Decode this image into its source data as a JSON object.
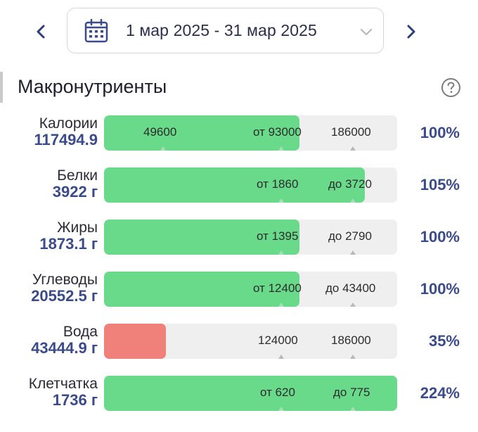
{
  "header": {
    "date_range": "1 мар 2025 - 31 мар 2025",
    "icons": {
      "prev": "chevron-left-icon",
      "next": "chevron-right-icon",
      "calendar": "calendar-icon",
      "dropdown": "chevron-down-icon"
    }
  },
  "section": {
    "title": "Макронутриенты",
    "help_icon": "question-circle-icon"
  },
  "colors": {
    "accent": "#3b4b89",
    "ok": "#69d98a",
    "low": "#ef807a",
    "track": "#efefef"
  },
  "nutrients": [
    {
      "name": "Калории",
      "amount": "117494.9",
      "percent": "100%",
      "fill_fraction": 0.667,
      "status": "ok",
      "marks": [
        {
          "label": "49600"
        },
        {
          "label": "от 93000"
        },
        {
          "label": "186000"
        }
      ]
    },
    {
      "name": "Белки",
      "amount": "3922 г",
      "percent": "105%",
      "fill_fraction": 0.89,
      "status": "ok",
      "marks": [
        {
          "label": "от 1860"
        },
        {
          "label": "до 3720"
        }
      ]
    },
    {
      "name": "Жиры",
      "amount": "1873.1 г",
      "percent": "100%",
      "fill_fraction": 0.667,
      "status": "ok",
      "marks": [
        {
          "label": "от 1395"
        },
        {
          "label": "до 2790"
        }
      ]
    },
    {
      "name": "Углеводы",
      "amount": "20552.5 г",
      "percent": "100%",
      "fill_fraction": 0.667,
      "status": "ok",
      "marks": [
        {
          "label": "от 12400"
        },
        {
          "label": "до 43400"
        }
      ]
    },
    {
      "name": "Вода",
      "amount": "43444.9 г",
      "percent": "35%",
      "fill_fraction": 0.21,
      "status": "low",
      "marks": [
        {
          "label": "124000"
        },
        {
          "label": "186000"
        }
      ]
    },
    {
      "name": "Клетчатка",
      "amount": "1736 г",
      "percent": "224%",
      "fill_fraction": 1.0,
      "status": "ok",
      "marks": [
        {
          "label": "от 620"
        },
        {
          "label": "до 775"
        }
      ]
    }
  ]
}
